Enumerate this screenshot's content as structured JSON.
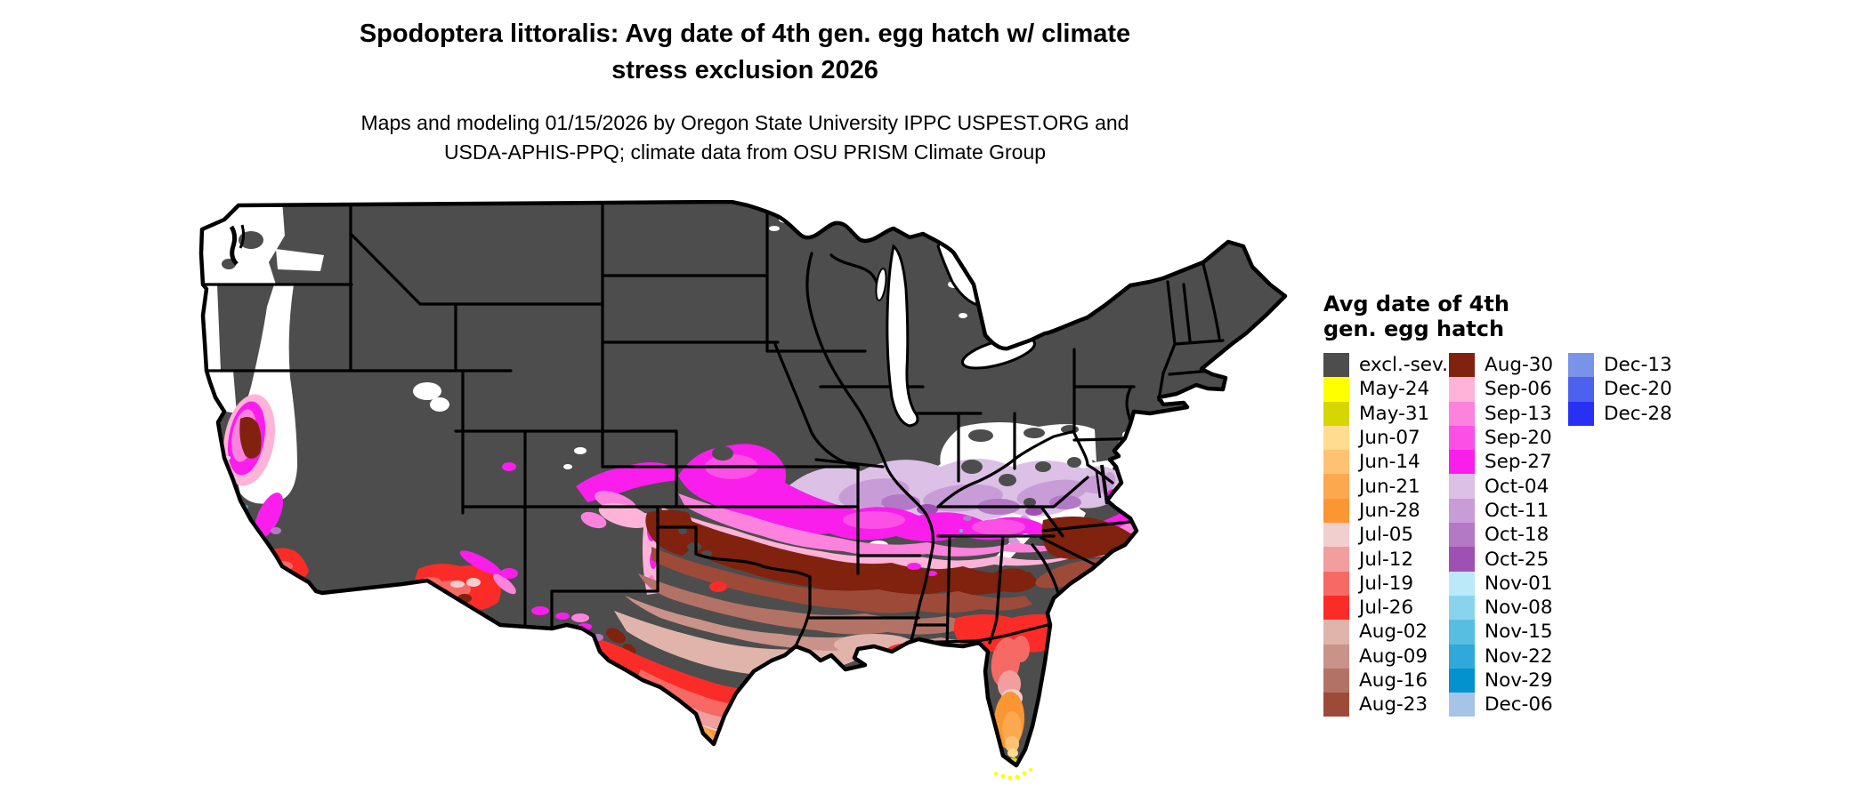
{
  "title": {
    "line1": "Spodoptera littoralis: Avg date of 4th gen. egg hatch w/ climate",
    "line2": "stress exclusion 2026"
  },
  "subtitle": {
    "line1": "Maps and modeling 01/15/2026 by Oregon State University IPPC USPEST.ORG and",
    "line2": "USDA-APHIS-PPQ; climate data from OSU PRISM Climate Group"
  },
  "legend": {
    "title_line1": "Avg date of 4th",
    "title_line2": "gen. egg hatch",
    "columns": [
      {
        "items": [
          {
            "label": "excl.-sev.",
            "color": "#4D4D4D"
          },
          {
            "label": "May-24",
            "color": "#FFFF00"
          },
          {
            "label": "May-31",
            "color": "#D6D600"
          },
          {
            "label": "Jun-07",
            "color": "#FFDC8F"
          },
          {
            "label": "Jun-14",
            "color": "#FFC273"
          },
          {
            "label": "Jun-21",
            "color": "#FCA84F"
          },
          {
            "label": "Jun-28",
            "color": "#FB9632"
          },
          {
            "label": "Jul-05",
            "color": "#F2CFCF"
          },
          {
            "label": "Jul-12",
            "color": "#F29E9E"
          },
          {
            "label": "Jul-19",
            "color": "#F76964"
          },
          {
            "label": "Jul-26",
            "color": "#FB2C28"
          },
          {
            "label": "Aug-02",
            "color": "#E0B4AB"
          },
          {
            "label": "Aug-09",
            "color": "#C9938A"
          },
          {
            "label": "Aug-16",
            "color": "#B37266"
          },
          {
            "label": "Aug-23",
            "color": "#9E4A38"
          }
        ]
      },
      {
        "items": [
          {
            "label": "Aug-30",
            "color": "#80220D"
          },
          {
            "label": "Sep-06",
            "color": "#FFB3D9"
          },
          {
            "label": "Sep-13",
            "color": "#FC82DE"
          },
          {
            "label": "Sep-20",
            "color": "#FB4FE5"
          },
          {
            "label": "Sep-27",
            "color": "#FA1EEC"
          },
          {
            "label": "Oct-04",
            "color": "#DCC0E6"
          },
          {
            "label": "Oct-11",
            "color": "#C89DD7"
          },
          {
            "label": "Oct-18",
            "color": "#B379C5"
          },
          {
            "label": "Oct-25",
            "color": "#9E51B3"
          },
          {
            "label": "Nov-01",
            "color": "#BCE9F9"
          },
          {
            "label": "Nov-08",
            "color": "#8AD3EE"
          },
          {
            "label": "Nov-15",
            "color": "#57BEE2"
          },
          {
            "label": "Nov-22",
            "color": "#2EA9D9"
          },
          {
            "label": "Nov-29",
            "color": "#0492CE"
          },
          {
            "label": "Dec-06",
            "color": "#A6C3E8"
          }
        ]
      },
      {
        "items": [
          {
            "label": "Dec-13",
            "color": "#7993E8"
          },
          {
            "label": "Dec-20",
            "color": "#4C62EE"
          },
          {
            "label": "Dec-28",
            "color": "#2830F4"
          }
        ]
      }
    ]
  },
  "map": {
    "colors": {
      "excluded": "#4D4D4D",
      "no_data": "#FFFFFF",
      "border": "#000000",
      "may24": "#FFFF00",
      "may31": "#D6D600",
      "jun07": "#FFDC8F",
      "jun14": "#FFC273",
      "jun21": "#FCA84F",
      "jun28": "#FB9632",
      "jul05": "#F2CFCF",
      "jul12": "#F29E9E",
      "jul19": "#F76964",
      "jul26": "#FB2C28",
      "aug02": "#E0B4AB",
      "aug09": "#C9938A",
      "aug16": "#B37266",
      "aug23": "#9E4A38",
      "aug30": "#80220D",
      "sep06": "#FFB3D9",
      "sep13": "#FC82DE",
      "sep20": "#FB4FE5",
      "sep27": "#FA1EEC",
      "oct04": "#DCC0E6",
      "oct11": "#C89DD7",
      "oct18": "#B379C5",
      "oct25": "#9E51B3",
      "nov01": "#BCE9F9",
      "nov08": "#8AD3EE",
      "nov15": "#57BEE2",
      "nov22": "#2EA9D9",
      "nov29": "#0492CE",
      "dec13": "#7993E8",
      "dec20": "#4C62EE",
      "dec28": "#2830F4"
    }
  }
}
